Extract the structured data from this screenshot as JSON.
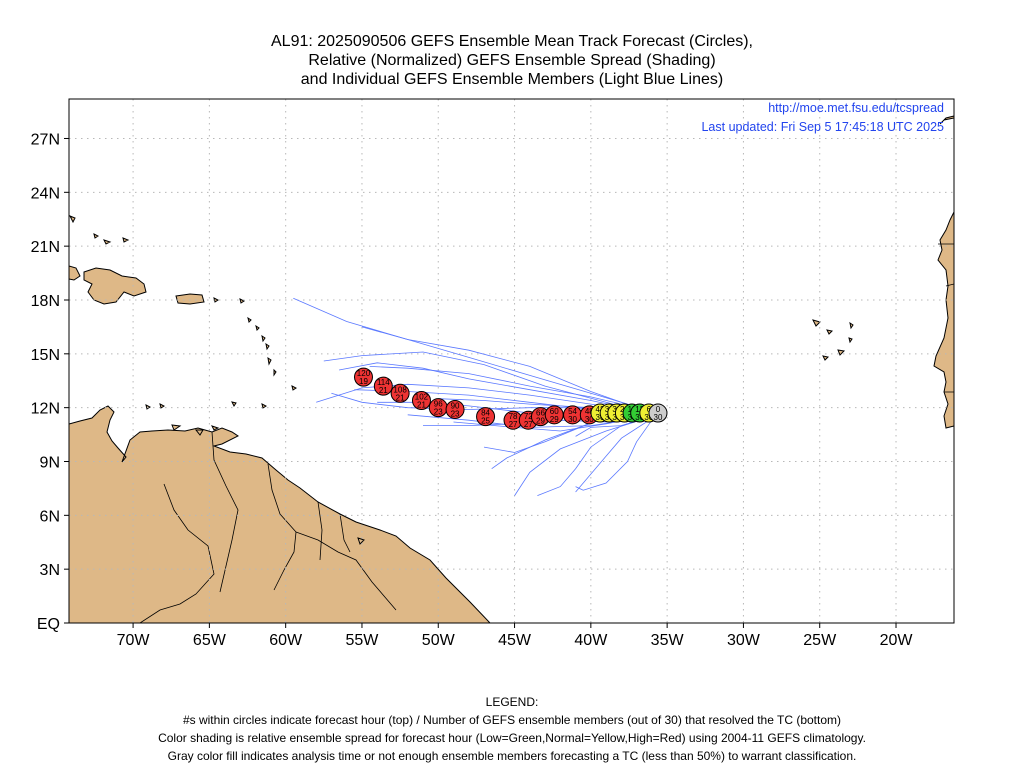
{
  "title": {
    "line1": "AL91: 2025090506 GEFS Ensemble Mean Track Forecast (Circles),",
    "line2": "Relative (Normalized) GEFS Ensemble Spread (Shading)",
    "line3": "and Individual GEFS Ensemble Members (Light Blue Lines)"
  },
  "map": {
    "url": "http://moe.met.fsu.edu/tcspread",
    "updated": "Last updated: Fri Sep 5 17:45:18 UTC 2025",
    "lat_labels": [
      "27N",
      "24N",
      "21N",
      "18N",
      "15N",
      "12N",
      "9N",
      "6N",
      "3N",
      "EQ"
    ],
    "lon_labels": [
      "70W",
      "65W",
      "60W",
      "55W",
      "50W",
      "45W",
      "40W",
      "35W",
      "30W",
      "25W",
      "20W"
    ],
    "lat_values": [
      27,
      24,
      21,
      18,
      15,
      12,
      9,
      6,
      3,
      0
    ],
    "lon_values": [
      -70,
      -65,
      -60,
      -55,
      -50,
      -45,
      -40,
      -35,
      -30,
      -25,
      -20
    ],
    "extent": {
      "lon_min": -74.2,
      "lon_max": -16.2,
      "lat_min": 0,
      "lat_max": 29.2
    },
    "colors": {
      "land": "#deb887",
      "member_track": "#5a78ff",
      "red": "#ee3333",
      "yellow": "#eeee33",
      "green": "#33cc33",
      "gray": "#cccccc",
      "link": "#2244ee"
    },
    "mean_track": [
      {
        "hour": "0",
        "members": "30",
        "lon": -35.6,
        "lat": 11.7,
        "category": "gray"
      },
      {
        "hour": "6",
        "members": "30",
        "lon": -36.2,
        "lat": 11.7,
        "category": "yellow"
      },
      {
        "hour": "12",
        "members": "30",
        "lon": -36.8,
        "lat": 11.7,
        "category": "green"
      },
      {
        "hour": "18",
        "members": "30",
        "lon": -37.3,
        "lat": 11.7,
        "category": "green"
      },
      {
        "hour": "24",
        "members": "30",
        "lon": -37.8,
        "lat": 11.7,
        "category": "yellow"
      },
      {
        "hour": "30",
        "members": "30",
        "lon": -38.3,
        "lat": 11.7,
        "category": "yellow"
      },
      {
        "hour": "36",
        "members": "30",
        "lon": -38.8,
        "lat": 11.7,
        "category": "yellow"
      },
      {
        "hour": "42",
        "members": "30",
        "lon": -39.4,
        "lat": 11.7,
        "category": "yellow"
      },
      {
        "hour": "48",
        "members": "30",
        "lon": -40.1,
        "lat": 11.6,
        "category": "red"
      },
      {
        "hour": "54",
        "members": "30",
        "lon": -41.2,
        "lat": 11.6,
        "category": "red"
      },
      {
        "hour": "60",
        "members": "29",
        "lon": -42.4,
        "lat": 11.6,
        "category": "red"
      },
      {
        "hour": "66",
        "members": "29",
        "lon": -43.3,
        "lat": 11.5,
        "category": "red"
      },
      {
        "hour": "72",
        "members": "27",
        "lon": -44.1,
        "lat": 11.3,
        "category": "red"
      },
      {
        "hour": "78",
        "members": "27",
        "lon": -45.1,
        "lat": 11.3,
        "category": "red"
      },
      {
        "hour": "84",
        "members": "25",
        "lon": -46.9,
        "lat": 11.5,
        "category": "red"
      },
      {
        "hour": "90",
        "members": "23",
        "lon": -48.9,
        "lat": 11.9,
        "category": "red"
      },
      {
        "hour": "96",
        "members": "23",
        "lon": -50.0,
        "lat": 12.0,
        "category": "red"
      },
      {
        "hour": "102",
        "members": "21",
        "lon": -51.1,
        "lat": 12.4,
        "category": "red"
      },
      {
        "hour": "108",
        "members": "21",
        "lon": -52.5,
        "lat": 12.8,
        "category": "red"
      },
      {
        "hour": "114",
        "members": "21",
        "lon": -53.6,
        "lat": 13.2,
        "category": "red"
      },
      {
        "hour": "120",
        "members": "19",
        "lon": -54.9,
        "lat": 13.7,
        "category": "red"
      }
    ],
    "member_tracks": [
      [
        [
          -36,
          11.7
        ],
        [
          -40,
          12.9
        ],
        [
          -44,
          14.3
        ],
        [
          -48,
          15.2
        ],
        [
          -52,
          15.8
        ],
        [
          -56,
          16.8
        ],
        [
          -59.5,
          18.1
        ]
      ],
      [
        [
          -36,
          11.6
        ],
        [
          -39,
          12.3
        ],
        [
          -43,
          13.2
        ],
        [
          -47,
          14.4
        ],
        [
          -51,
          15.1
        ],
        [
          -55,
          14.9
        ],
        [
          -57.5,
          14.6
        ]
      ],
      [
        [
          -36,
          11.8
        ],
        [
          -40,
          12.8
        ],
        [
          -44,
          13.8
        ],
        [
          -48,
          14.8
        ],
        [
          -52,
          15.8
        ],
        [
          -55,
          16.5
        ]
      ],
      [
        [
          -36,
          11.7
        ],
        [
          -40,
          12.4
        ],
        [
          -44,
          13.0
        ],
        [
          -48,
          13.6
        ],
        [
          -51,
          14.2
        ],
        [
          -54,
          14.5
        ],
        [
          -56.5,
          14.1
        ]
      ],
      [
        [
          -36,
          11.7
        ],
        [
          -40,
          12.2
        ],
        [
          -44,
          12.7
        ],
        [
          -48,
          13.1
        ],
        [
          -52,
          13.3
        ],
        [
          -55,
          13.1
        ],
        [
          -58,
          12.3
        ]
      ],
      [
        [
          -36,
          11.6
        ],
        [
          -40,
          11.9
        ],
        [
          -44,
          12.3
        ],
        [
          -48,
          12.7
        ],
        [
          -52,
          12.9
        ],
        [
          -55.5,
          13.0
        ]
      ],
      [
        [
          -36,
          11.7
        ],
        [
          -40,
          12.0
        ],
        [
          -44,
          12.0
        ],
        [
          -48,
          11.9
        ],
        [
          -52,
          12.0
        ],
        [
          -55,
          12.3
        ],
        [
          -57,
          12.8
        ]
      ],
      [
        [
          -36,
          11.6
        ],
        [
          -40,
          11.4
        ],
        [
          -44,
          11.7
        ],
        [
          -48,
          12.1
        ],
        [
          -51,
          12.3
        ],
        [
          -54,
          12.3
        ]
      ],
      [
        [
          -36,
          11.5
        ],
        [
          -40,
          11.0
        ],
        [
          -44,
          10.9
        ],
        [
          -48,
          11.3
        ],
        [
          -52,
          11.6
        ]
      ],
      [
        [
          -36,
          11.6
        ],
        [
          -39,
          11.1
        ],
        [
          -42,
          10.7
        ],
        [
          -45,
          10.9
        ],
        [
          -49,
          11.2
        ]
      ],
      [
        [
          -36,
          11.4
        ],
        [
          -38,
          10.3
        ],
        [
          -39,
          9.3
        ],
        [
          -40,
          8.3
        ],
        [
          -41,
          7.3
        ]
      ],
      [
        [
          -36,
          11.3
        ],
        [
          -37,
          10.1
        ],
        [
          -37.6,
          9.0
        ],
        [
          -39,
          7.8
        ],
        [
          -40.5,
          7.4
        ],
        [
          -41,
          7.6
        ]
      ],
      [
        [
          -36,
          11.5
        ],
        [
          -39,
          10.7
        ],
        [
          -42,
          9.7
        ],
        [
          -44,
          8.4
        ],
        [
          -45,
          7.1
        ]
      ],
      [
        [
          -36,
          11.5
        ],
        [
          -38,
          11.0
        ],
        [
          -40,
          10.9
        ],
        [
          -41,
          10.4
        ]
      ],
      [
        [
          -36,
          11.5
        ],
        [
          -38,
          11.0
        ],
        [
          -40,
          9.8
        ],
        [
          -41,
          8.6
        ],
        [
          -42,
          7.6
        ],
        [
          -43.5,
          7.1
        ]
      ],
      [
        [
          -36,
          11.6
        ],
        [
          -39,
          11.5
        ],
        [
          -41,
          10.8
        ],
        [
          -43,
          10.1
        ],
        [
          -45,
          9.5
        ],
        [
          -47,
          9.8
        ]
      ],
      [
        [
          -36,
          11.7
        ],
        [
          -40,
          12.0
        ],
        [
          -44,
          12.2
        ],
        [
          -47,
          12.4
        ],
        [
          -50,
          12.5
        ]
      ],
      [
        [
          -36,
          11.8
        ],
        [
          -40,
          12.6
        ],
        [
          -44,
          13.2
        ],
        [
          -48,
          13.9
        ],
        [
          -52,
          14.2
        ],
        [
          -54.5,
          14.3
        ]
      ],
      [
        [
          -36,
          11.6
        ],
        [
          -39,
          11.2
        ],
        [
          -42,
          11.3
        ],
        [
          -45,
          11.1
        ],
        [
          -48,
          11.0
        ],
        [
          -51,
          11.0
        ]
      ],
      [
        [
          -36,
          11.6
        ],
        [
          -39.5,
          11.3
        ],
        [
          -43,
          10.2
        ],
        [
          -45.5,
          9.2
        ],
        [
          -46.5,
          8.6
        ]
      ]
    ]
  },
  "legend": {
    "title": "LEGEND:",
    "line1": "#s within circles indicate forecast hour (top) / Number of GEFS ensemble members (out of 30) that resolved the TC (bottom)",
    "line2": "Color shading is relative ensemble spread for forecast hour (Low=Green,Normal=Yellow,High=Red) using 2004-11 GEFS climatology.",
    "line3": "Gray color fill indicates analysis time or not enough ensemble members forecasting a TC (less than 50%) to warrant classification."
  }
}
